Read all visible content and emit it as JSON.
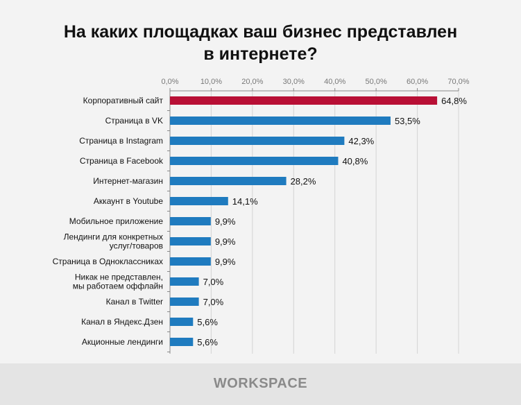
{
  "chart_data": {
    "type": "bar",
    "orientation": "horizontal",
    "title": "На каких площадках ваш бизнес представлен в интернете?",
    "title_lines": [
      "На каких площадках ваш бизнес представлен",
      "в интернете?"
    ],
    "categories": [
      [
        "Корпоративный сайт"
      ],
      [
        "Страница в VK"
      ],
      [
        "Страница в Instagram"
      ],
      [
        "Страница в Facebook"
      ],
      [
        "Интернет-магазин"
      ],
      [
        "Аккаунт в Youtube"
      ],
      [
        "Мобильное  приложение"
      ],
      [
        "Лендинги для конкретных",
        "услуг/товаров"
      ],
      [
        "Страница в Одноклассниках"
      ],
      [
        "Никак не представлен,",
        "мы работаем оффлайн"
      ],
      [
        "Канал в Twitter"
      ],
      [
        "Канал в Яндекс.Дзен"
      ],
      [
        "Акционные лендинги"
      ]
    ],
    "values": [
      64.8,
      53.5,
      42.3,
      40.8,
      28.2,
      14.1,
      9.9,
      9.9,
      9.9,
      7.0,
      7.0,
      5.6,
      5.6
    ],
    "value_labels": [
      "64,8%",
      "53,5%",
      "42,3%",
      "40,8%",
      "28,2%",
      "14,1%",
      "9,9%",
      "9,9%",
      "9,9%",
      "7,0%",
      "7,0%",
      "5,6%",
      "5,6%"
    ],
    "xlim": [
      0,
      70
    ],
    "xticks": [
      "0,0%",
      "10,0%",
      "20,0%",
      "30,0%",
      "40,0%",
      "50,0%",
      "60,0%",
      "70,0%"
    ],
    "grid": true,
    "colors": {
      "highlight": "#b80f35",
      "bar": "#1f7bbf",
      "grid": "#d4d4d4",
      "axis": "#888888"
    }
  },
  "footer": {
    "logo": "WORKSPACE"
  }
}
